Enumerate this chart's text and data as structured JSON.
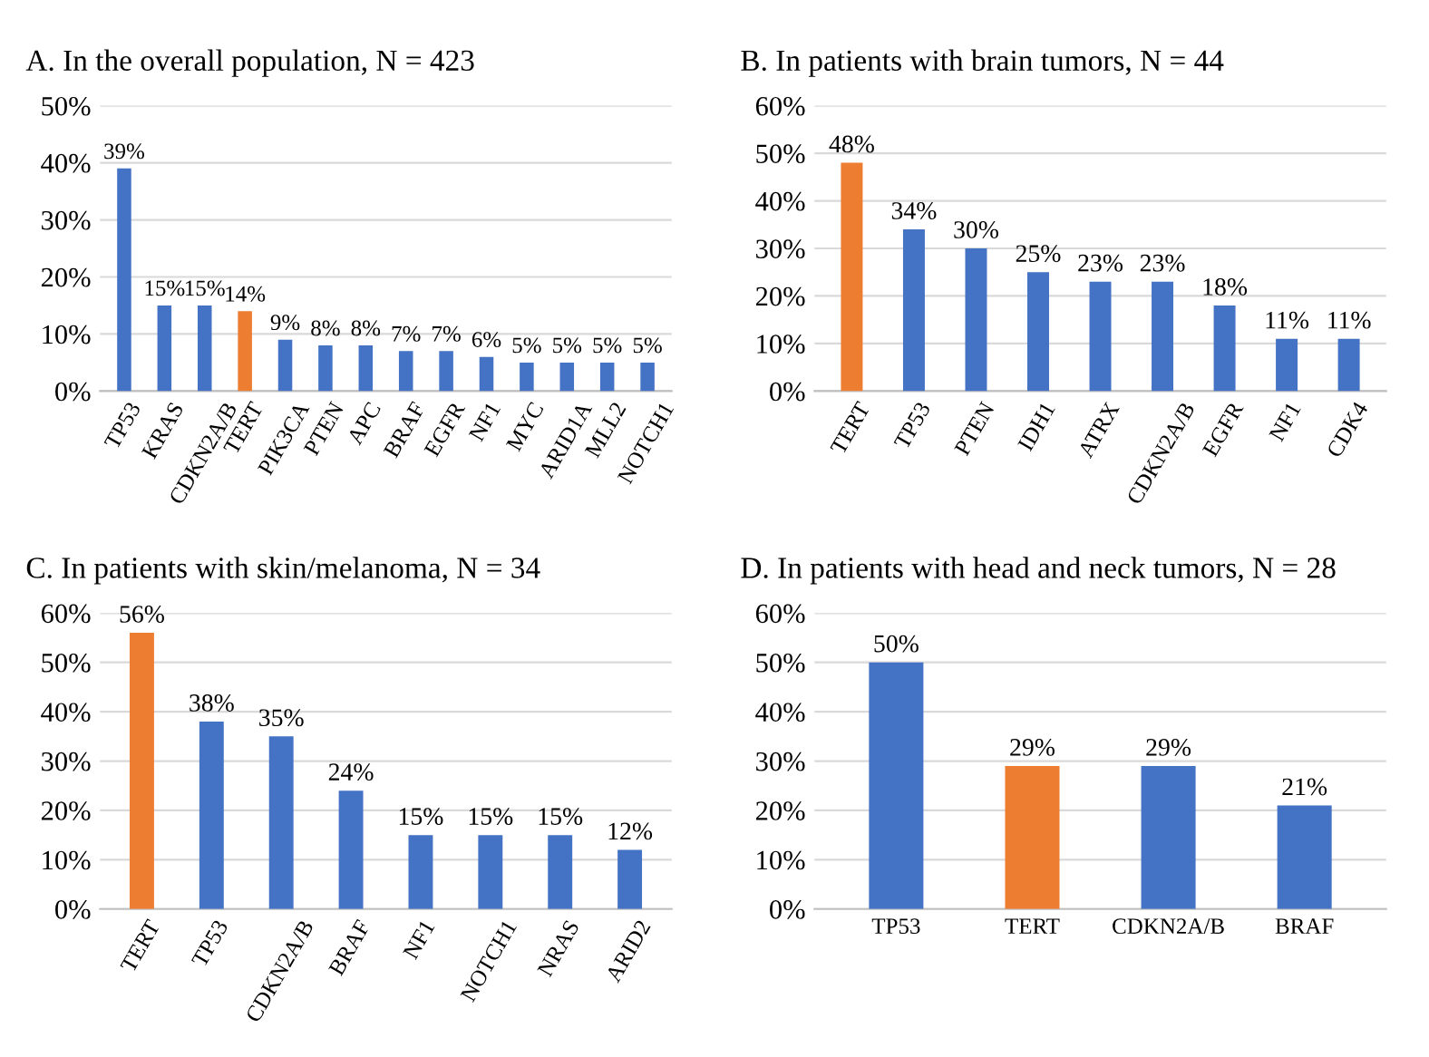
{
  "chart_data": [
    {
      "type": "bar",
      "title": "A. In the overall population, N = 423",
      "categories": [
        "TP53",
        "KRAS",
        "CDKN2A/B",
        "TERT",
        "PIK3CA",
        "PTEN",
        "APC",
        "BRAF",
        "EGFR",
        "NF1",
        "MYC",
        "ARID1A",
        "MLL2",
        "NOTCH1"
      ],
      "values": [
        39,
        15,
        15,
        14,
        9,
        8,
        8,
        7,
        7,
        6,
        5,
        5,
        5,
        5
      ],
      "value_labels": [
        "39%",
        "15%",
        "15%",
        "14%",
        "9%",
        "8%",
        "8%",
        "7%",
        "7%",
        "6%",
        "5%",
        "5%",
        "5%",
        "5%"
      ],
      "colors": [
        "#4472c4",
        "#4472c4",
        "#4472c4",
        "#ed7d31",
        "#4472c4",
        "#4472c4",
        "#4472c4",
        "#4472c4",
        "#4472c4",
        "#4472c4",
        "#4472c4",
        "#4472c4",
        "#4472c4",
        "#4472c4"
      ],
      "ylim": [
        0,
        50
      ],
      "yticks": [
        {
          "value": 0,
          "label": "0%"
        },
        {
          "value": 10,
          "label": "10%"
        },
        {
          "value": 20,
          "label": "20%"
        },
        {
          "value": 30,
          "label": "30%"
        },
        {
          "value": 40,
          "label": "40%"
        },
        {
          "value": 50,
          "label": "50%"
        }
      ],
      "grid": "y"
    },
    {
      "type": "bar",
      "title": "B. In patients with brain tumors, N = 44",
      "categories": [
        "TERT",
        "TP53",
        "PTEN",
        "IDH1",
        "ATRX",
        "CDKN2A/B",
        "EGFR",
        "NF1",
        "CDK4"
      ],
      "values": [
        48,
        34,
        30,
        25,
        23,
        23,
        18,
        11,
        11
      ],
      "value_labels": [
        "48%",
        "34%",
        "30%",
        "25%",
        "23%",
        "23%",
        "18%",
        "11%",
        "11%"
      ],
      "colors": [
        "#ed7d31",
        "#4472c4",
        "#4472c4",
        "#4472c4",
        "#4472c4",
        "#4472c4",
        "#4472c4",
        "#4472c4",
        "#4472c4"
      ],
      "ylim": [
        0,
        60
      ],
      "yticks": [
        {
          "value": 0,
          "label": "0%"
        },
        {
          "value": 10,
          "label": "10%"
        },
        {
          "value": 20,
          "label": "20%"
        },
        {
          "value": 30,
          "label": "30%"
        },
        {
          "value": 40,
          "label": "40%"
        },
        {
          "value": 50,
          "label": "50%"
        },
        {
          "value": 60,
          "label": "60%"
        }
      ],
      "grid": "y"
    },
    {
      "type": "bar",
      "title": "C. In patients with skin/melanoma, N = 34",
      "categories": [
        "TERT",
        "TP53",
        "CDKN2A/B",
        "BRAF",
        "NF1",
        "NOTCH1",
        "NRAS",
        "ARID2"
      ],
      "values": [
        56,
        38,
        35,
        24,
        15,
        15,
        15,
        12
      ],
      "value_labels": [
        "56%",
        "38%",
        "35%",
        "24%",
        "15%",
        "15%",
        "15%",
        "12%"
      ],
      "colors": [
        "#ed7d31",
        "#4472c4",
        "#4472c4",
        "#4472c4",
        "#4472c4",
        "#4472c4",
        "#4472c4",
        "#4472c4"
      ],
      "ylim": [
        0,
        60
      ],
      "yticks": [
        {
          "value": 0,
          "label": "0%"
        },
        {
          "value": 10,
          "label": "10%"
        },
        {
          "value": 20,
          "label": "20%"
        },
        {
          "value": 30,
          "label": "30%"
        },
        {
          "value": 40,
          "label": "40%"
        },
        {
          "value": 50,
          "label": "50%"
        },
        {
          "value": 60,
          "label": "60%"
        }
      ],
      "grid": "y"
    },
    {
      "type": "bar",
      "title": "D. In patients with head and neck tumors, N = 28",
      "categories": [
        "TP53",
        "TERT",
        "CDKN2A/B",
        "BRAF"
      ],
      "values": [
        50,
        29,
        29,
        21
      ],
      "value_labels": [
        "50%",
        "29%",
        "29%",
        "21%"
      ],
      "colors": [
        "#4472c4",
        "#ed7d31",
        "#4472c4",
        "#4472c4"
      ],
      "ylim": [
        0,
        60
      ],
      "yticks": [
        {
          "value": 0,
          "label": "0%"
        },
        {
          "value": 10,
          "label": "10%"
        },
        {
          "value": 20,
          "label": "20%"
        },
        {
          "value": 30,
          "label": "30%"
        },
        {
          "value": 40,
          "label": "40%"
        },
        {
          "value": 50,
          "label": "50%"
        },
        {
          "value": 60,
          "label": "60%"
        }
      ],
      "grid": "y"
    }
  ]
}
